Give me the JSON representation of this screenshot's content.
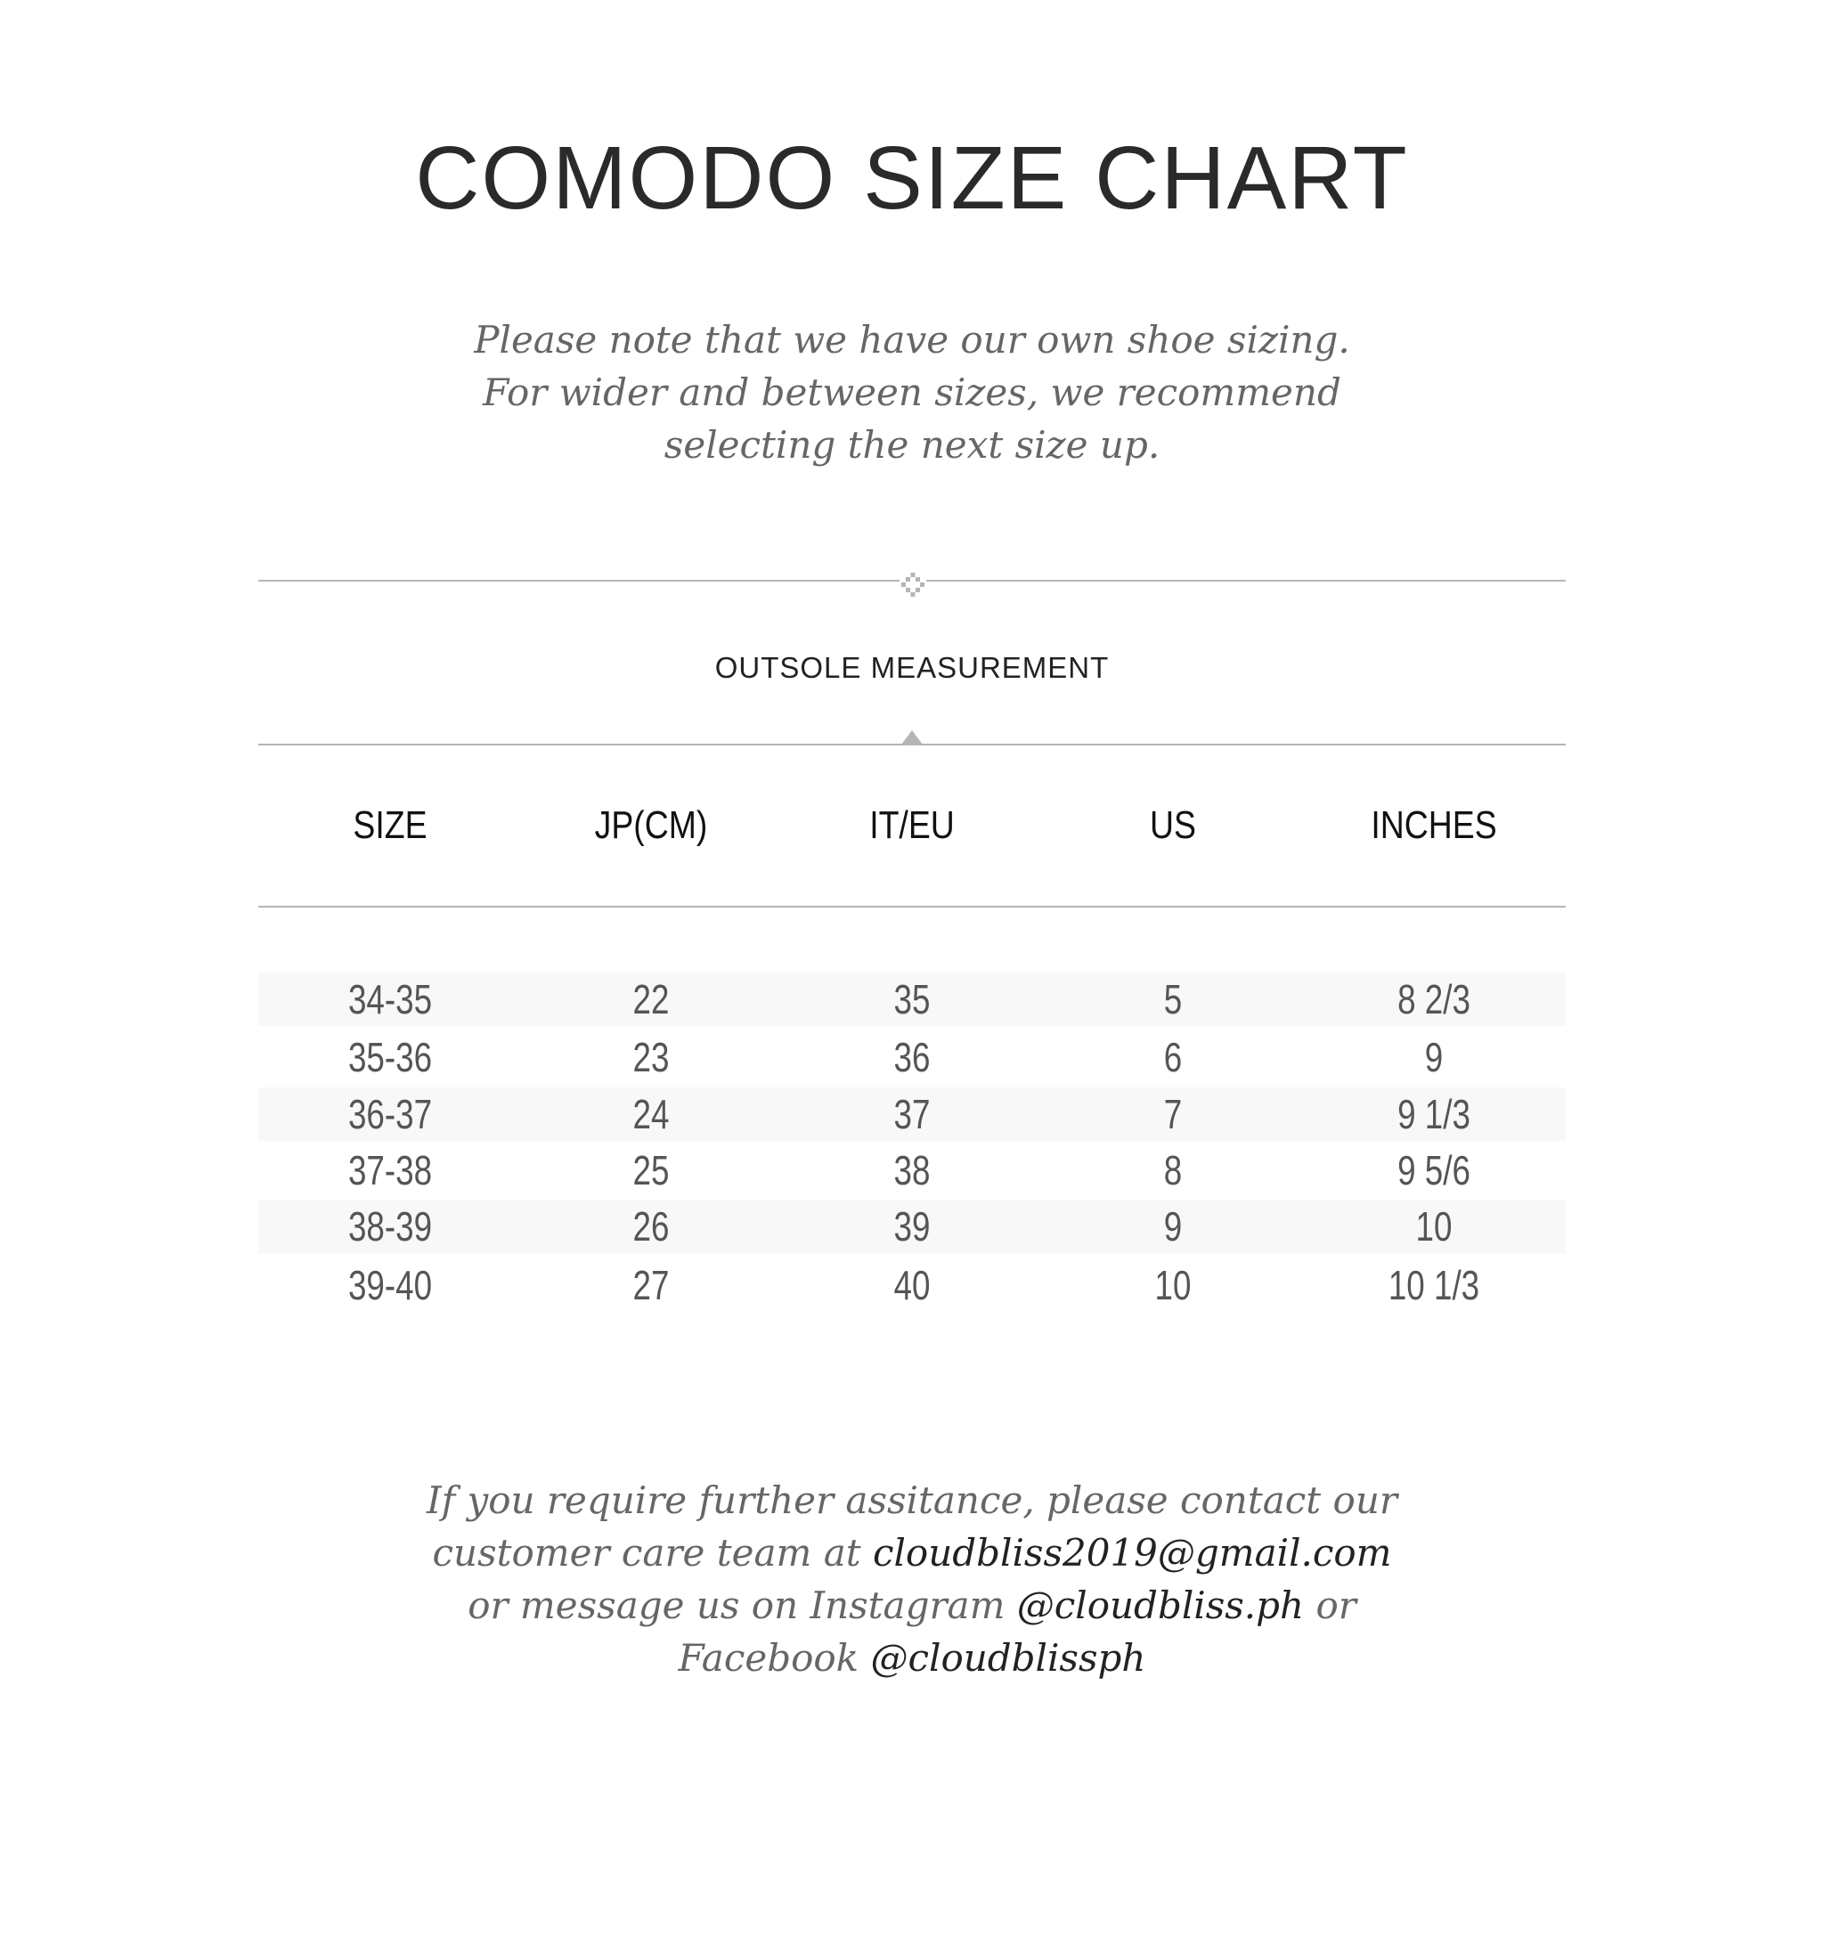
{
  "title": "COMODO SIZE CHART",
  "note_lines": [
    "Please note that we have our own shoe sizing.",
    "For wider and between sizes, we recommend",
    "selecting the next size up."
  ],
  "section_label": "OUTSOLE MEASUREMENT",
  "divider_icon": "diamond-ornament-icon",
  "table": {
    "headers": [
      "SIZE",
      "JP(CM)",
      "IT/EU",
      "US",
      "INCHES"
    ],
    "rows": [
      [
        "34-35",
        "22",
        "35",
        "5",
        "8 2/3"
      ],
      [
        "35-36",
        "23",
        "36",
        "6",
        "9"
      ],
      [
        "36-37",
        "24",
        "37",
        "7",
        "9 1/3"
      ],
      [
        "37-38",
        "25",
        "38",
        "8",
        "9 5/6"
      ],
      [
        "38-39",
        "26",
        "39",
        "9",
        "10"
      ],
      [
        "39-40",
        "27",
        "40",
        "10",
        "10 1/3"
      ]
    ],
    "stripe_color": "#f8f8f8"
  },
  "footer": {
    "line1": "If you require further assitance, please contact our",
    "line2_prefix": "customer care team at ",
    "email": "cloudbliss2019@gmail.com",
    "line3_prefix": "or message us on Instagram ",
    "instagram": "@cloudbliss.ph",
    "line3_suffix": " or",
    "line4_prefix": "Facebook ",
    "facebook": "@cloudblissph"
  }
}
